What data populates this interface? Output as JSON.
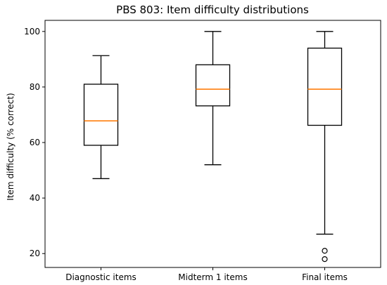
{
  "chart_data": {
    "type": "box",
    "title": "PBS 803: Item difficulty distributions",
    "xlabel": "",
    "ylabel": "Item difficulty (% correct)",
    "ylim": [
      15,
      104
    ],
    "yticks": [
      20,
      40,
      60,
      80,
      100
    ],
    "grid": false,
    "categories": [
      "Diagnostic items",
      "Midterm 1 items",
      "Final items"
    ],
    "boxes": [
      {
        "category": "Diagnostic items",
        "whisker_low": 47,
        "q1": 59,
        "median": 67.8,
        "q3": 81,
        "whisker_high": 91.3,
        "outliers": []
      },
      {
        "category": "Midterm 1 items",
        "whisker_low": 52,
        "q1": 73.2,
        "median": 79.2,
        "q3": 88,
        "whisker_high": 100,
        "outliers": []
      },
      {
        "category": "Final items",
        "whisker_low": 27,
        "q1": 66.2,
        "median": 79.2,
        "q3": 94,
        "whisker_high": 100,
        "outliers": [
          21,
          18
        ]
      }
    ],
    "colors": {
      "box": "#000000",
      "median": "#ff7f0e"
    }
  }
}
